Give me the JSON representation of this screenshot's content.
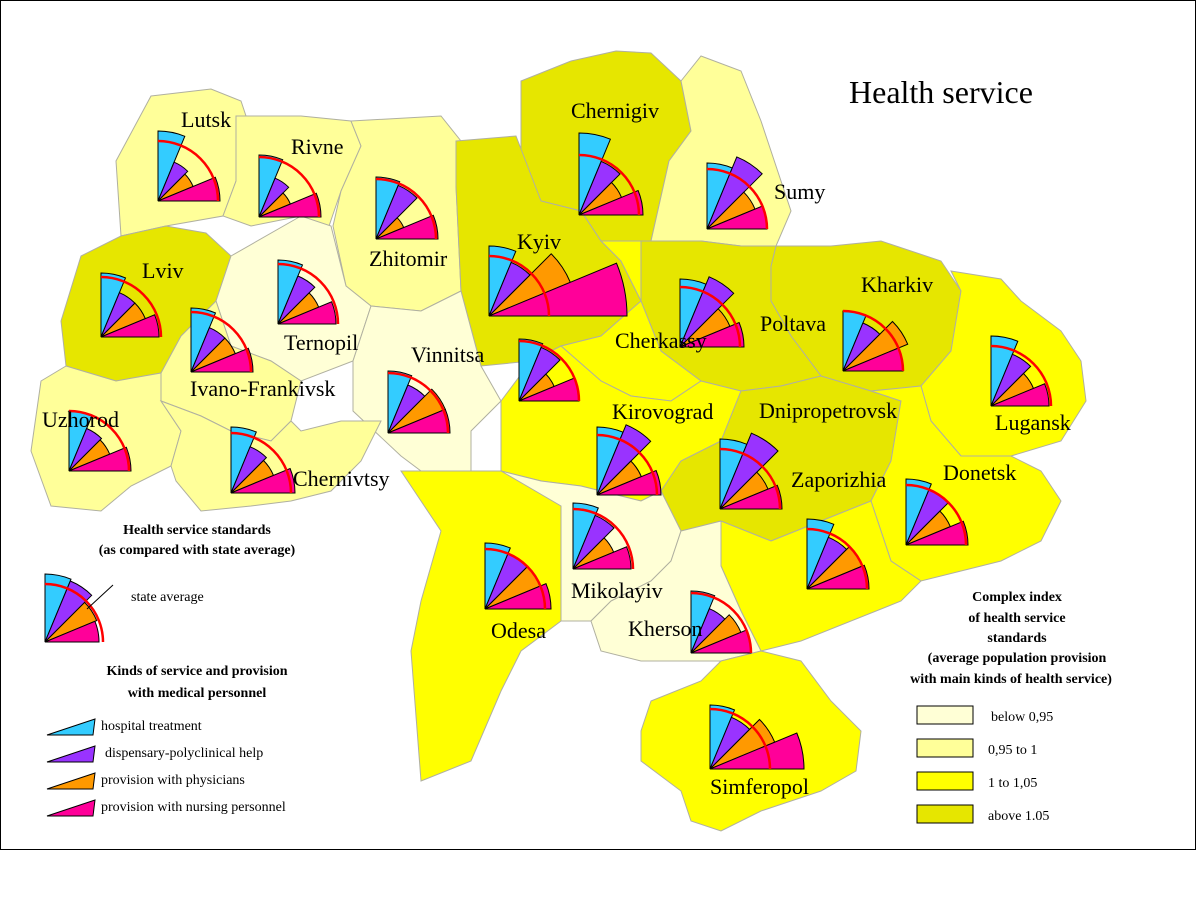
{
  "title": "Health service",
  "colors": {
    "class_below_095": "#ffffd6",
    "class_095_1": "#ffff99",
    "class_1_105": "#ffff00",
    "class_above_105": "#e6e600",
    "hospital": "#33ccff",
    "dispensary": "#9933ff",
    "physicians": "#ff9900",
    "nursing": "#ff0099",
    "state_average_arc": "#ff0000",
    "border": "#000000"
  },
  "regions": [
    {
      "name": "Lutsk",
      "class": "class_095_1"
    },
    {
      "name": "Rivne",
      "class": "class_095_1"
    },
    {
      "name": "Zhitomir",
      "class": "class_095_1"
    },
    {
      "name": "Chernigiv",
      "class": "class_above_105"
    },
    {
      "name": "Sumy",
      "class": "class_095_1"
    },
    {
      "name": "Lviv",
      "class": "class_above_105"
    },
    {
      "name": "Ternopil",
      "class": "class_below_095"
    },
    {
      "name": "Kyiv",
      "class": "class_above_105"
    },
    {
      "name": "Kharkiv",
      "class": "class_above_105"
    },
    {
      "name": "Poltava",
      "class": "class_above_105"
    },
    {
      "name": "Cherkassy",
      "class": "class_1_105"
    },
    {
      "name": "Vinnitsa",
      "class": "class_below_095"
    },
    {
      "name": "Ivano-Frankivsk",
      "class": "class_095_1"
    },
    {
      "name": "Uzhorod",
      "class": "class_095_1"
    },
    {
      "name": "Chernivtsy",
      "class": "class_095_1"
    },
    {
      "name": "Kirovograd",
      "class": "class_1_105"
    },
    {
      "name": "Dnipropetrovsk",
      "class": "class_above_105"
    },
    {
      "name": "Lugansk",
      "class": "class_1_105"
    },
    {
      "name": "Donetsk",
      "class": "class_1_105"
    },
    {
      "name": "Zaporizhia",
      "class": "class_1_105"
    },
    {
      "name": "Odesa",
      "class": "class_1_105"
    },
    {
      "name": "Mikolayiv",
      "class": "class_below_095"
    },
    {
      "name": "Kherson",
      "class": "class_below_095"
    },
    {
      "name": "Simferopol",
      "class": "class_1_105"
    }
  ],
  "legend_standards": {
    "title_line1": "Health service standards",
    "title_line2": "(as compared with state average)",
    "state_average_label": "state average"
  },
  "legend_kinds": {
    "title_line1": "Kinds of service and provision",
    "title_line2": "with medical personnel",
    "items": [
      {
        "label": "hospital treatment",
        "color": "hospital"
      },
      {
        "label": "dispensary-polyclinical help",
        "color": "dispensary"
      },
      {
        "label": "provision with physicians",
        "color": "physicians"
      },
      {
        "label": "provision with nursing personnel",
        "color": "nursing"
      }
    ]
  },
  "legend_index": {
    "title_lines": [
      "Complex index",
      "of health service",
      "standards",
      "(average population provision",
      "with main kinds of health service)"
    ],
    "items": [
      {
        "label": "below 0,95",
        "class": "class_below_095"
      },
      {
        "label": "0,95 to 1",
        "class": "class_095_1"
      },
      {
        "label": "1 to 1,05",
        "class": "class_1_105"
      },
      {
        "label": "above 1.05",
        "class": "class_above_105"
      }
    ]
  }
}
